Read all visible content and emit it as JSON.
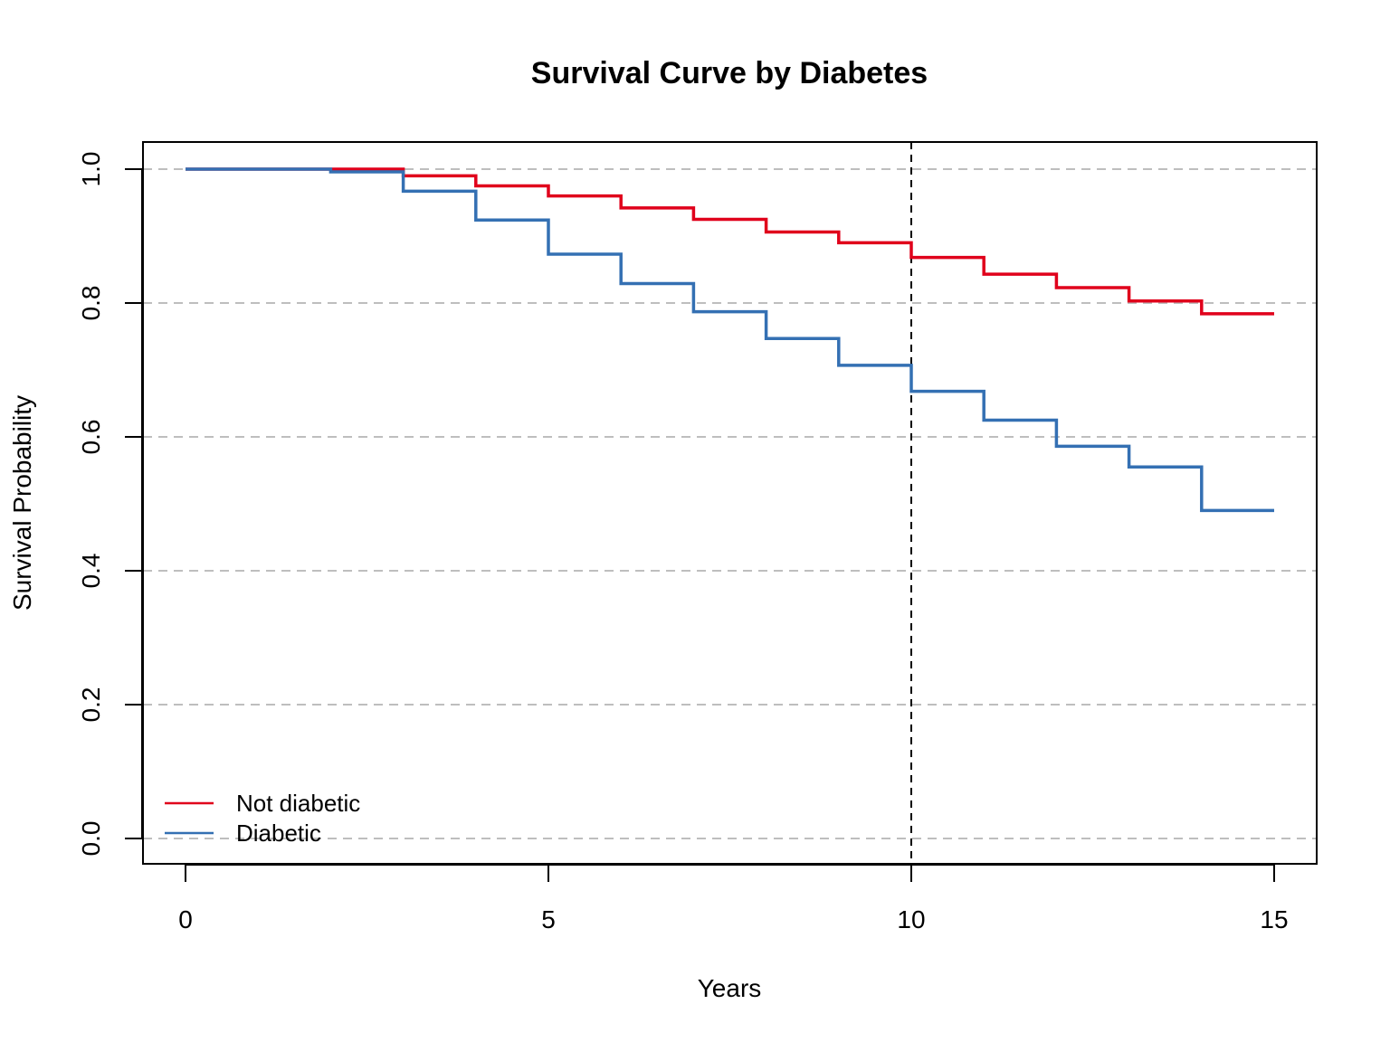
{
  "chart_data": {
    "type": "line",
    "step": true,
    "title": "Survival Curve by Diabetes",
    "xlabel": "Years",
    "ylabel": "Survival Probability",
    "xlim": [
      0,
      15
    ],
    "ylim": [
      0,
      1
    ],
    "x_ticks": [
      0,
      5,
      10,
      15
    ],
    "x_tick_labels": [
      "0",
      "5",
      "10",
      "15"
    ],
    "y_ticks": [
      0,
      0.2,
      0.4,
      0.6,
      0.8,
      1.0
    ],
    "y_tick_labels": [
      "0.0",
      "0.2",
      "0.4",
      "0.6",
      "0.8",
      "1.0"
    ],
    "grid": "horizontal dashed",
    "legend_position": "bottom-left",
    "reference_line": {
      "x": 10,
      "style": "dashed",
      "color": "#000000"
    },
    "series": [
      {
        "name": "Not diabetic",
        "color": "#E0001B",
        "x": [
          0,
          1,
          2,
          3,
          4,
          5,
          6,
          7,
          8,
          9,
          10,
          11,
          12,
          13,
          14,
          15
        ],
        "values": [
          1.0,
          1.0,
          1.0,
          0.99,
          0.975,
          0.96,
          0.942,
          0.925,
          0.906,
          0.89,
          0.868,
          0.843,
          0.823,
          0.803,
          0.784,
          0.784
        ]
      },
      {
        "name": "Diabetic",
        "color": "#3470B3",
        "x": [
          0,
          1,
          2,
          3,
          4,
          5,
          6,
          7,
          8,
          9,
          10,
          11,
          12,
          13,
          14,
          15
        ],
        "values": [
          1.0,
          1.0,
          0.996,
          0.967,
          0.924,
          0.873,
          0.829,
          0.787,
          0.747,
          0.707,
          0.668,
          0.625,
          0.586,
          0.555,
          0.49,
          0.49
        ]
      }
    ]
  }
}
